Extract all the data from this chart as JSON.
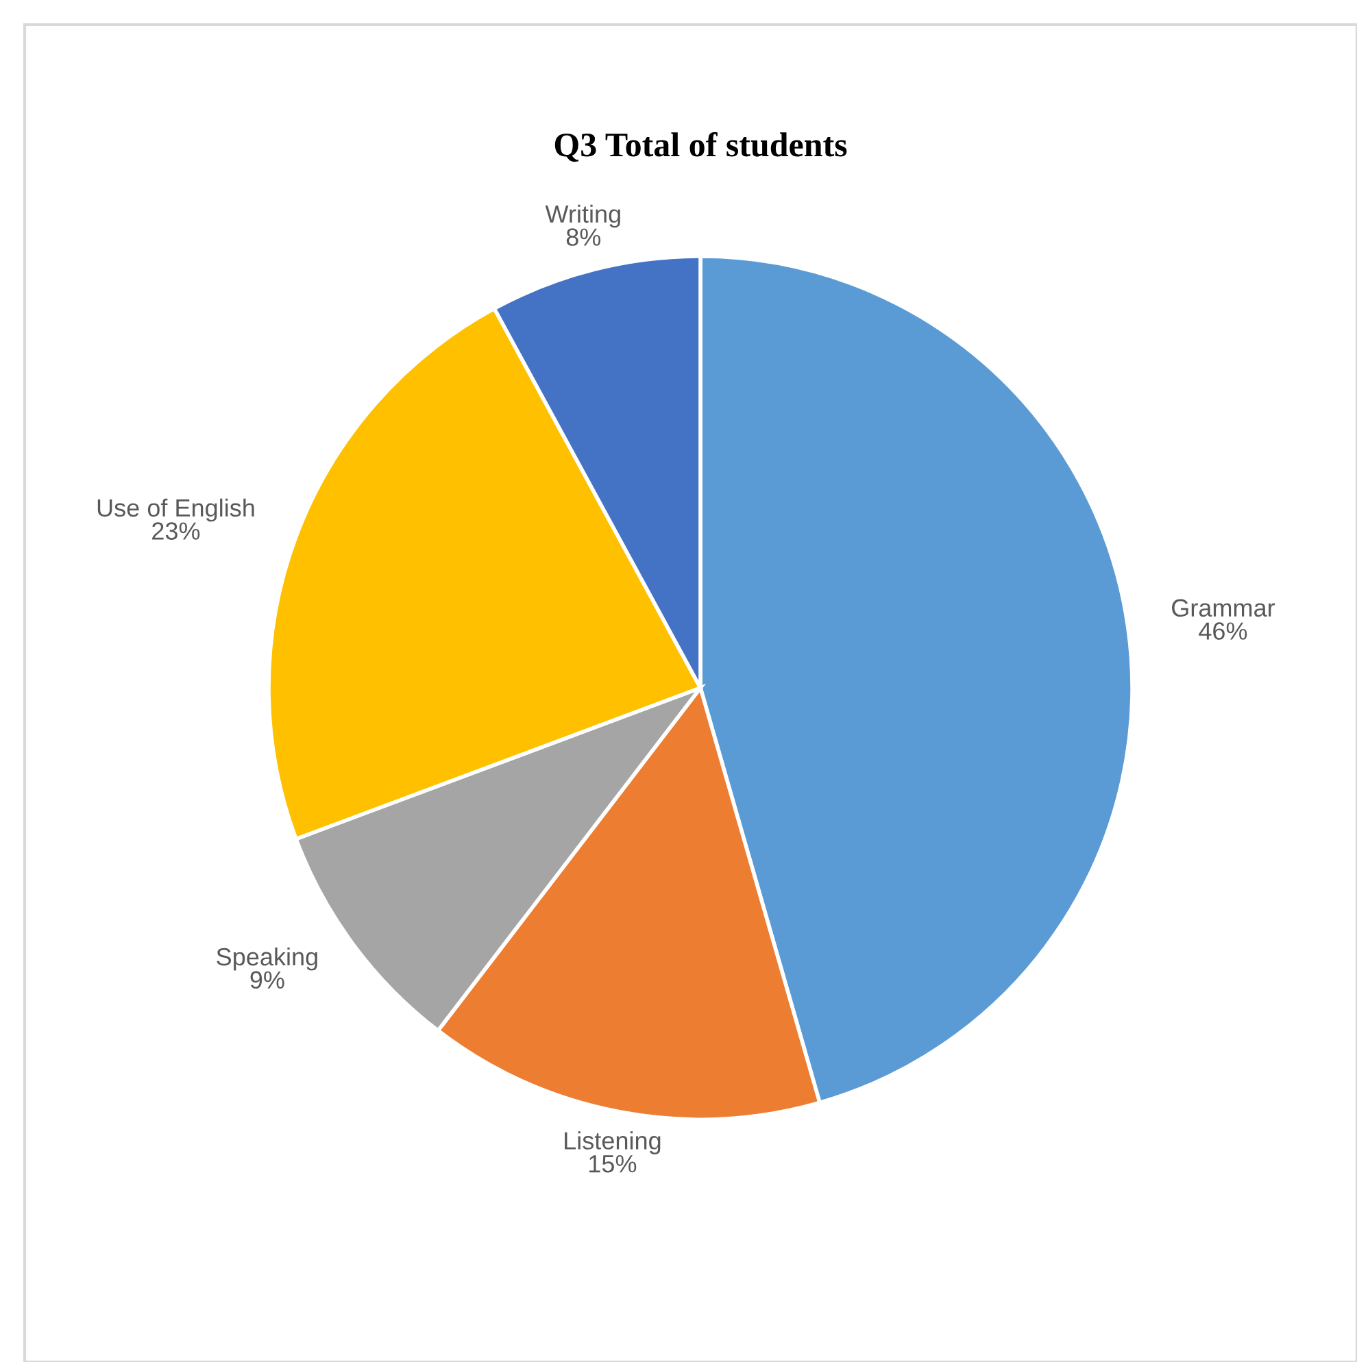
{
  "chart_data": {
    "type": "pie",
    "title": "Q3 Total of students",
    "categories": [
      "Grammar",
      "Listening",
      "Speaking",
      "Use of English",
      "Writing"
    ],
    "values": [
      46,
      15,
      9,
      23,
      8
    ],
    "colors": [
      "#5b9bd5",
      "#ed7d31",
      "#a5a5a5",
      "#ffc000",
      "#4472c4"
    ],
    "value_labels": [
      "46%",
      "15%",
      "9%",
      "23%",
      "8%"
    ],
    "legend": false
  }
}
